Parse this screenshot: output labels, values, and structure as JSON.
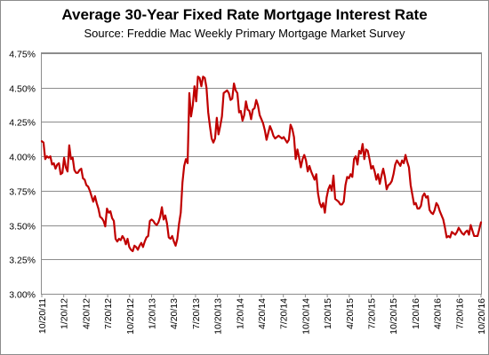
{
  "chart_data": {
    "type": "line",
    "title": "Average 30-Year Fixed Rate Mortgage Interest Rate",
    "subtitle": "Source: Freddie Mac Weekly Primary Mortgage Market Survey",
    "xlabel": "",
    "ylabel": "",
    "ylim": [
      3.0,
      4.75
    ],
    "y_ticks": [
      3.0,
      3.25,
      3.5,
      3.75,
      4.0,
      4.25,
      4.5,
      4.75
    ],
    "y_tick_labels": [
      "3.00%",
      "3.25%",
      "3.50%",
      "3.75%",
      "4.00%",
      "4.25%",
      "4.50%",
      "4.75%"
    ],
    "x_tick_labels": [
      "10/20/11",
      "1/20/12",
      "4/20/12",
      "7/20/12",
      "10/20/12",
      "1/20/13",
      "4/20/13",
      "7/20/13",
      "10/20/13",
      "1/20/14",
      "4/20/14",
      "7/20/14",
      "10/20/14",
      "1/20/15",
      "4/20/15",
      "7/20/15",
      "10/20/15",
      "1/20/16",
      "4/20/16",
      "7/20/16",
      "10/20/16"
    ],
    "grid": true,
    "legend": "none",
    "line_color": "#c00000",
    "series": [
      {
        "values": [
          4.11,
          4.1,
          3.98,
          4.0,
          3.99,
          4.0,
          3.94,
          3.95,
          3.91,
          3.94,
          3.95,
          3.87,
          3.88,
          3.99,
          3.92,
          3.89,
          4.08,
          3.98,
          3.99,
          3.9,
          3.88,
          3.88,
          3.9,
          3.91,
          3.84,
          3.83,
          3.79,
          3.78,
          3.75,
          3.71,
          3.67,
          3.71,
          3.66,
          3.62,
          3.56,
          3.55,
          3.53,
          3.49,
          3.62,
          3.59,
          3.6,
          3.55,
          3.53,
          3.4,
          3.38,
          3.4,
          3.39,
          3.42,
          3.4,
          3.36,
          3.4,
          3.34,
          3.32,
          3.31,
          3.35,
          3.34,
          3.32,
          3.35,
          3.37,
          3.34,
          3.38,
          3.41,
          3.42,
          3.53,
          3.54,
          3.53,
          3.51,
          3.5,
          3.52,
          3.56,
          3.63,
          3.54,
          3.57,
          3.51,
          3.41,
          3.4,
          3.42,
          3.38,
          3.35,
          3.4,
          3.51,
          3.59,
          3.81,
          3.93,
          3.98,
          3.95,
          4.46,
          4.29,
          4.37,
          4.51,
          4.4,
          4.58,
          4.57,
          4.51,
          4.58,
          4.57,
          4.5,
          4.32,
          4.22,
          4.13,
          4.1,
          4.13,
          4.28,
          4.16,
          4.22,
          4.29,
          4.46,
          4.47,
          4.48,
          4.46,
          4.41,
          4.42,
          4.53,
          4.48,
          4.46,
          4.32,
          4.33,
          4.26,
          4.3,
          4.4,
          4.34,
          4.33,
          4.27,
          4.34,
          4.35,
          4.41,
          4.37,
          4.3,
          4.27,
          4.24,
          4.19,
          4.12,
          4.17,
          4.22,
          4.19,
          4.15,
          4.13,
          4.14,
          4.15,
          4.14,
          4.13,
          4.14,
          4.12,
          4.1,
          4.12,
          4.23,
          4.2,
          4.14,
          3.98,
          4.05,
          3.99,
          3.92,
          3.98,
          4.01,
          3.97,
          3.89,
          3.93,
          3.89,
          3.86,
          3.83,
          3.87,
          3.73,
          3.66,
          3.63,
          3.66,
          3.59,
          3.7,
          3.76,
          3.79,
          3.75,
          3.86,
          3.69,
          3.68,
          3.67,
          3.65,
          3.65,
          3.67,
          3.79,
          3.85,
          3.84,
          3.87,
          3.85,
          3.98,
          4.0,
          3.94,
          4.04,
          4.02,
          4.09,
          3.98,
          4.05,
          4.04,
          3.98,
          3.91,
          3.93,
          3.89,
          3.83,
          3.87,
          3.8,
          3.86,
          3.91,
          3.85,
          3.76,
          3.79,
          3.8,
          3.82,
          3.87,
          3.94,
          3.97,
          3.95,
          3.93,
          3.97,
          3.95,
          4.01,
          3.96,
          3.92,
          3.79,
          3.72,
          3.65,
          3.66,
          3.62,
          3.62,
          3.64,
          3.71,
          3.73,
          3.7,
          3.71,
          3.61,
          3.59,
          3.58,
          3.61,
          3.66,
          3.64,
          3.6,
          3.57,
          3.54,
          3.48,
          3.41,
          3.42,
          3.41,
          3.45,
          3.44,
          3.43,
          3.45,
          3.48,
          3.46,
          3.44,
          3.43,
          3.45,
          3.46,
          3.43,
          3.5,
          3.46,
          3.42,
          3.42,
          3.42,
          3.47,
          3.52
        ]
      }
    ]
  }
}
